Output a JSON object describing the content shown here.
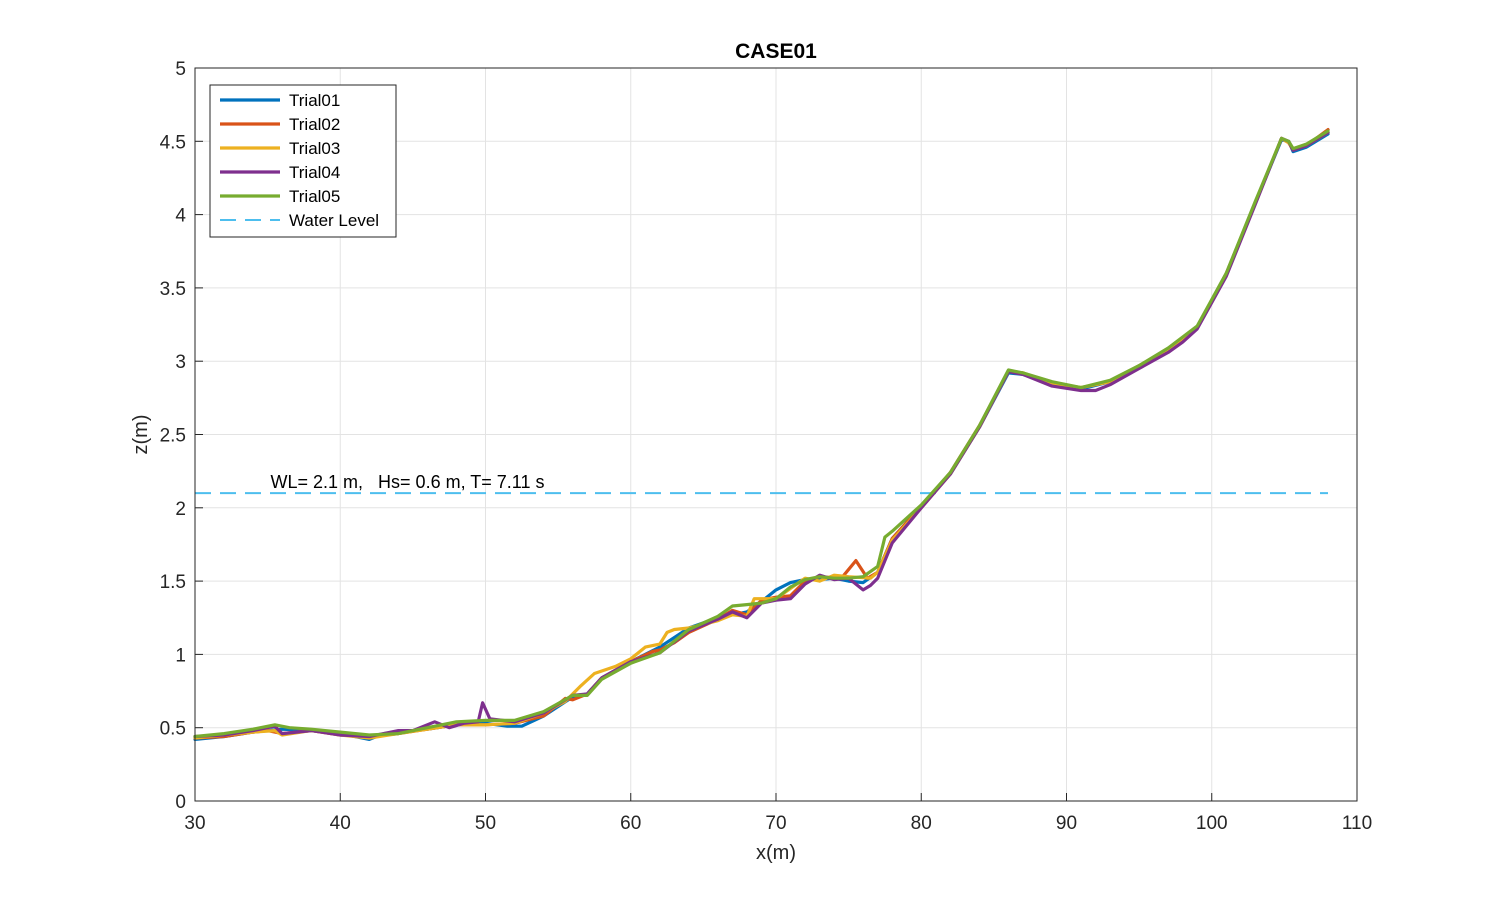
{
  "chart_data": {
    "type": "line",
    "title": "CASE01",
    "xlabel": "x(m)",
    "ylabel": "z(m)",
    "xlim": [
      30,
      110
    ],
    "ylim": [
      0,
      5
    ],
    "xticks": [
      30,
      40,
      50,
      60,
      70,
      80,
      90,
      100,
      110
    ],
    "yticks": [
      0,
      0.5,
      1,
      1.5,
      2,
      2.5,
      3,
      3.5,
      4,
      4.5,
      5
    ],
    "grid": true,
    "legend_position": "top-left",
    "annotation": "WL= 2.1 m,   Hs= 0.6 m, T= 7.11 s",
    "series": [
      {
        "name": "Trial01",
        "color": "#0072BD",
        "dash": "solid",
        "points": [
          [
            30,
            0.42
          ],
          [
            32,
            0.44
          ],
          [
            34,
            0.47
          ],
          [
            36,
            0.49
          ],
          [
            38,
            0.48
          ],
          [
            40,
            0.46
          ],
          [
            42,
            0.42
          ],
          [
            43,
            0.46
          ],
          [
            46,
            0.49
          ],
          [
            48,
            0.52
          ],
          [
            50,
            0.53
          ],
          [
            51.5,
            0.51
          ],
          [
            52.5,
            0.51
          ],
          [
            54,
            0.58
          ],
          [
            56,
            0.71
          ],
          [
            57,
            0.73
          ],
          [
            58,
            0.84
          ],
          [
            60,
            0.95
          ],
          [
            62,
            1.05
          ],
          [
            64,
            1.18
          ],
          [
            66,
            1.25
          ],
          [
            68,
            1.29
          ],
          [
            69,
            1.36
          ],
          [
            70,
            1.44
          ],
          [
            71,
            1.49
          ],
          [
            72,
            1.51
          ],
          [
            73,
            1.51
          ],
          [
            74,
            1.52
          ],
          [
            75,
            1.5
          ],
          [
            76,
            1.49
          ],
          [
            77,
            1.56
          ],
          [
            78,
            1.79
          ],
          [
            80,
            2.01
          ],
          [
            82,
            2.23
          ],
          [
            84,
            2.55
          ],
          [
            86,
            2.92
          ],
          [
            87,
            2.91
          ],
          [
            89,
            2.84
          ],
          [
            91,
            2.81
          ],
          [
            93,
            2.86
          ],
          [
            95,
            2.96
          ],
          [
            97,
            3.07
          ],
          [
            99,
            3.23
          ],
          [
            101,
            3.6
          ],
          [
            103,
            4.08
          ],
          [
            104.8,
            4.51
          ],
          [
            105.3,
            4.5
          ],
          [
            105.6,
            4.43
          ],
          [
            106.5,
            4.46
          ],
          [
            108,
            4.55
          ]
        ]
      },
      {
        "name": "Trial02",
        "color": "#D95319",
        "dash": "solid",
        "points": [
          [
            30,
            0.43
          ],
          [
            32,
            0.44
          ],
          [
            34,
            0.47
          ],
          [
            35,
            0.48
          ],
          [
            36,
            0.46
          ],
          [
            38,
            0.48
          ],
          [
            40,
            0.45
          ],
          [
            42,
            0.44
          ],
          [
            44,
            0.46
          ],
          [
            46,
            0.49
          ],
          [
            48,
            0.52
          ],
          [
            50,
            0.52
          ],
          [
            52,
            0.53
          ],
          [
            54,
            0.58
          ],
          [
            55.5,
            0.7
          ],
          [
            56,
            0.69
          ],
          [
            57,
            0.73
          ],
          [
            58,
            0.84
          ],
          [
            60,
            0.95
          ],
          [
            61.5,
            1.02
          ],
          [
            62,
            1.03
          ],
          [
            63,
            1.08
          ],
          [
            64,
            1.15
          ],
          [
            66,
            1.24
          ],
          [
            67,
            1.3
          ],
          [
            68,
            1.27
          ],
          [
            69,
            1.37
          ],
          [
            70,
            1.39
          ],
          [
            71,
            1.4
          ],
          [
            72,
            1.5
          ],
          [
            73,
            1.53
          ],
          [
            74.5,
            1.52
          ],
          [
            75.5,
            1.64
          ],
          [
            76.3,
            1.52
          ],
          [
            77,
            1.56
          ],
          [
            78,
            1.79
          ],
          [
            80,
            2.01
          ],
          [
            82,
            2.24
          ],
          [
            84,
            2.56
          ],
          [
            86,
            2.93
          ],
          [
            87,
            2.92
          ],
          [
            89,
            2.85
          ],
          [
            91,
            2.82
          ],
          [
            93,
            2.86
          ],
          [
            95,
            2.97
          ],
          [
            97,
            3.08
          ],
          [
            99,
            3.23
          ],
          [
            101,
            3.59
          ],
          [
            103,
            4.08
          ],
          [
            104.8,
            4.52
          ],
          [
            105.3,
            4.49
          ],
          [
            105.6,
            4.44
          ],
          [
            106.5,
            4.47
          ],
          [
            108,
            4.58
          ]
        ]
      },
      {
        "name": "Trial03",
        "color": "#EDB120",
        "dash": "solid",
        "points": [
          [
            30,
            0.43
          ],
          [
            32,
            0.45
          ],
          [
            34,
            0.47
          ],
          [
            35.5,
            0.48
          ],
          [
            36,
            0.45
          ],
          [
            38,
            0.48
          ],
          [
            40,
            0.45
          ],
          [
            42,
            0.43
          ],
          [
            44,
            0.46
          ],
          [
            46,
            0.49
          ],
          [
            48,
            0.52
          ],
          [
            50,
            0.52
          ],
          [
            52,
            0.53
          ],
          [
            54,
            0.6
          ],
          [
            55.5,
            0.68
          ],
          [
            56.5,
            0.78
          ],
          [
            57.5,
            0.87
          ],
          [
            59,
            0.92
          ],
          [
            60,
            0.97
          ],
          [
            61,
            1.05
          ],
          [
            62,
            1.07
          ],
          [
            62.5,
            1.15
          ],
          [
            63,
            1.17
          ],
          [
            64,
            1.18
          ],
          [
            66,
            1.23
          ],
          [
            67,
            1.27
          ],
          [
            68,
            1.26
          ],
          [
            68.5,
            1.38
          ],
          [
            70,
            1.38
          ],
          [
            71,
            1.45
          ],
          [
            72,
            1.52
          ],
          [
            73,
            1.5
          ],
          [
            74,
            1.54
          ],
          [
            75,
            1.53
          ],
          [
            76.5,
            1.52
          ],
          [
            77,
            1.56
          ],
          [
            78,
            1.78
          ],
          [
            80,
            2.0
          ],
          [
            82,
            2.23
          ],
          [
            84,
            2.55
          ],
          [
            86,
            2.93
          ],
          [
            87,
            2.92
          ],
          [
            89,
            2.85
          ],
          [
            91,
            2.82
          ],
          [
            93,
            2.86
          ],
          [
            95,
            2.96
          ],
          [
            97,
            3.08
          ],
          [
            99,
            3.23
          ],
          [
            101,
            3.6
          ],
          [
            103,
            4.08
          ],
          [
            104.8,
            4.52
          ],
          [
            105.3,
            4.49
          ],
          [
            105.6,
            4.45
          ],
          [
            106.5,
            4.47
          ],
          [
            108,
            4.56
          ]
        ]
      },
      {
        "name": "Trial04",
        "color": "#7E2F8E",
        "dash": "solid",
        "points": [
          [
            30,
            0.44
          ],
          [
            32,
            0.45
          ],
          [
            34,
            0.48
          ],
          [
            35.5,
            0.51
          ],
          [
            36,
            0.46
          ],
          [
            38,
            0.48
          ],
          [
            40,
            0.45
          ],
          [
            42,
            0.44
          ],
          [
            44,
            0.48
          ],
          [
            45,
            0.48
          ],
          [
            46.5,
            0.54
          ],
          [
            47.5,
            0.5
          ],
          [
            48.5,
            0.53
          ],
          [
            49.5,
            0.54
          ],
          [
            49.8,
            0.67
          ],
          [
            50.3,
            0.56
          ],
          [
            52,
            0.54
          ],
          [
            54,
            0.6
          ],
          [
            56,
            0.72
          ],
          [
            57,
            0.73
          ],
          [
            58,
            0.84
          ],
          [
            60,
            0.95
          ],
          [
            62,
            1.01
          ],
          [
            64,
            1.16
          ],
          [
            66,
            1.24
          ],
          [
            67,
            1.29
          ],
          [
            68,
            1.25
          ],
          [
            69,
            1.35
          ],
          [
            70,
            1.37
          ],
          [
            71,
            1.38
          ],
          [
            72,
            1.48
          ],
          [
            73,
            1.54
          ],
          [
            74,
            1.51
          ],
          [
            75,
            1.52
          ],
          [
            76,
            1.44
          ],
          [
            76.5,
            1.47
          ],
          [
            77,
            1.52
          ],
          [
            78,
            1.76
          ],
          [
            80,
            2.0
          ],
          [
            82,
            2.23
          ],
          [
            84,
            2.55
          ],
          [
            86,
            2.93
          ],
          [
            87,
            2.91
          ],
          [
            89,
            2.83
          ],
          [
            91,
            2.8
          ],
          [
            92,
            2.8
          ],
          [
            93,
            2.84
          ],
          [
            95,
            2.95
          ],
          [
            97,
            3.06
          ],
          [
            98,
            3.13
          ],
          [
            99,
            3.22
          ],
          [
            101,
            3.58
          ],
          [
            103,
            4.07
          ],
          [
            104.8,
            4.52
          ],
          [
            105.3,
            4.5
          ],
          [
            105.6,
            4.44
          ],
          [
            106.5,
            4.47
          ],
          [
            108,
            4.56
          ]
        ]
      },
      {
        "name": "Trial05",
        "color": "#77AC30",
        "dash": "solid",
        "points": [
          [
            30,
            0.44
          ],
          [
            32,
            0.46
          ],
          [
            34,
            0.49
          ],
          [
            35.5,
            0.52
          ],
          [
            36.5,
            0.5
          ],
          [
            38,
            0.49
          ],
          [
            40,
            0.47
          ],
          [
            42,
            0.45
          ],
          [
            44,
            0.46
          ],
          [
            46,
            0.5
          ],
          [
            48,
            0.54
          ],
          [
            50,
            0.55
          ],
          [
            52,
            0.55
          ],
          [
            54,
            0.61
          ],
          [
            56,
            0.72
          ],
          [
            57,
            0.72
          ],
          [
            58,
            0.83
          ],
          [
            60,
            0.94
          ],
          [
            62,
            1.01
          ],
          [
            64,
            1.17
          ],
          [
            66,
            1.26
          ],
          [
            67,
            1.33
          ],
          [
            68,
            1.34
          ],
          [
            69,
            1.35
          ],
          [
            70,
            1.38
          ],
          [
            71,
            1.46
          ],
          [
            72,
            1.51
          ],
          [
            73,
            1.53
          ],
          [
            74,
            1.52
          ],
          [
            75,
            1.52
          ],
          [
            76,
            1.53
          ],
          [
            77,
            1.6
          ],
          [
            77.5,
            1.8
          ],
          [
            78,
            1.84
          ],
          [
            80,
            2.02
          ],
          [
            82,
            2.24
          ],
          [
            84,
            2.56
          ],
          [
            86,
            2.94
          ],
          [
            87,
            2.92
          ],
          [
            89,
            2.86
          ],
          [
            91,
            2.82
          ],
          [
            93,
            2.87
          ],
          [
            95,
            2.97
          ],
          [
            97,
            3.09
          ],
          [
            99,
            3.24
          ],
          [
            101,
            3.6
          ],
          [
            103,
            4.09
          ],
          [
            104.8,
            4.52
          ],
          [
            105.3,
            4.5
          ],
          [
            105.6,
            4.45
          ],
          [
            106.5,
            4.48
          ],
          [
            108,
            4.57
          ]
        ]
      },
      {
        "name": "Water Level",
        "color": "#4DBEEE",
        "dash": "dashed",
        "points": [
          [
            30,
            2.1
          ],
          [
            108,
            2.1
          ]
        ]
      }
    ]
  }
}
